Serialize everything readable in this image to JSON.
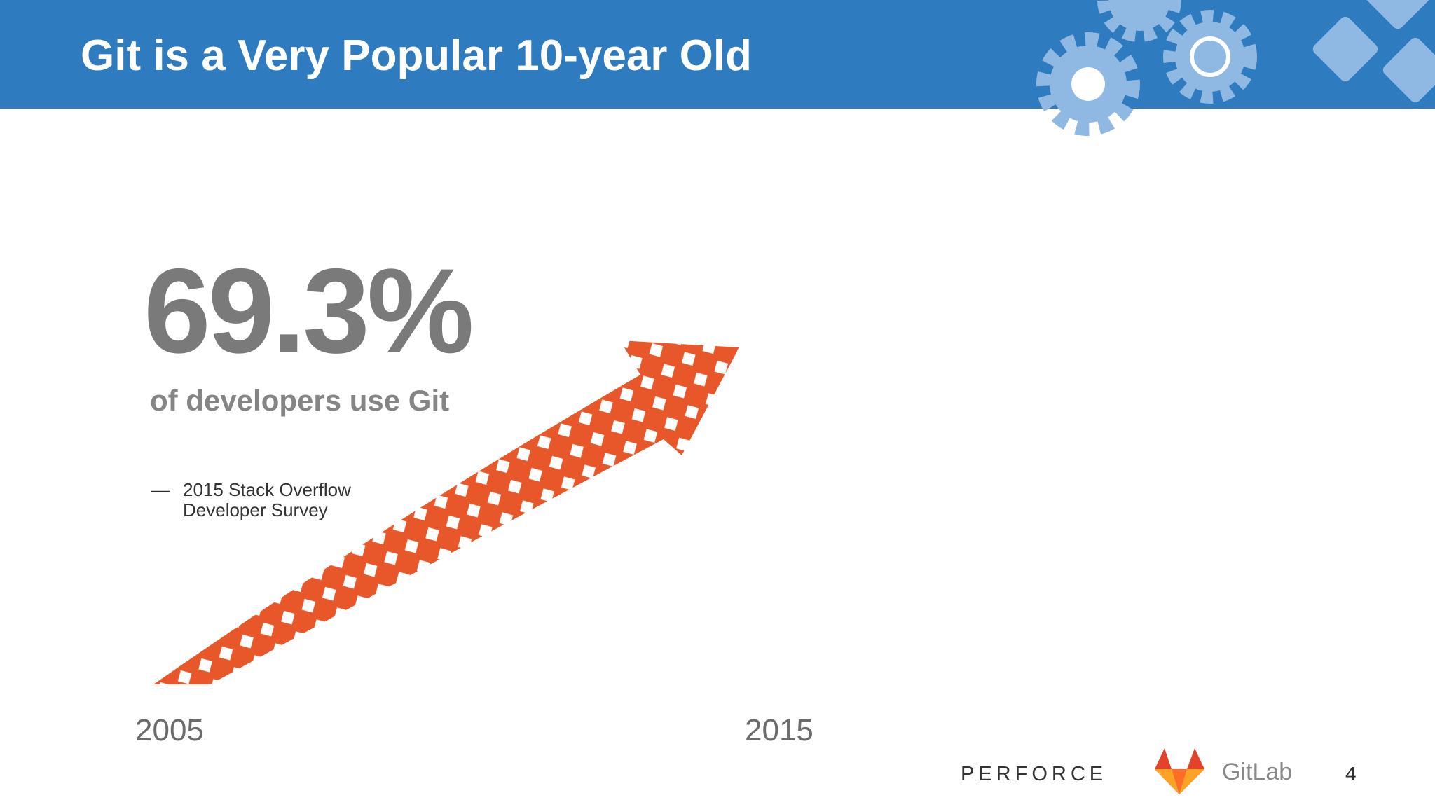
{
  "header": {
    "title": "Git is a Very Popular 10-year Old"
  },
  "stat": {
    "value": "69.3%",
    "caption": "of developers use Git"
  },
  "source": {
    "dash": "—",
    "lines": [
      "2015 Stack Overflow",
      "Developer Survey"
    ]
  },
  "timeline": {
    "start": "2005",
    "end": "2015"
  },
  "footer": {
    "brand": "PERFORCE",
    "partner": "GitLab",
    "page": "4"
  }
}
